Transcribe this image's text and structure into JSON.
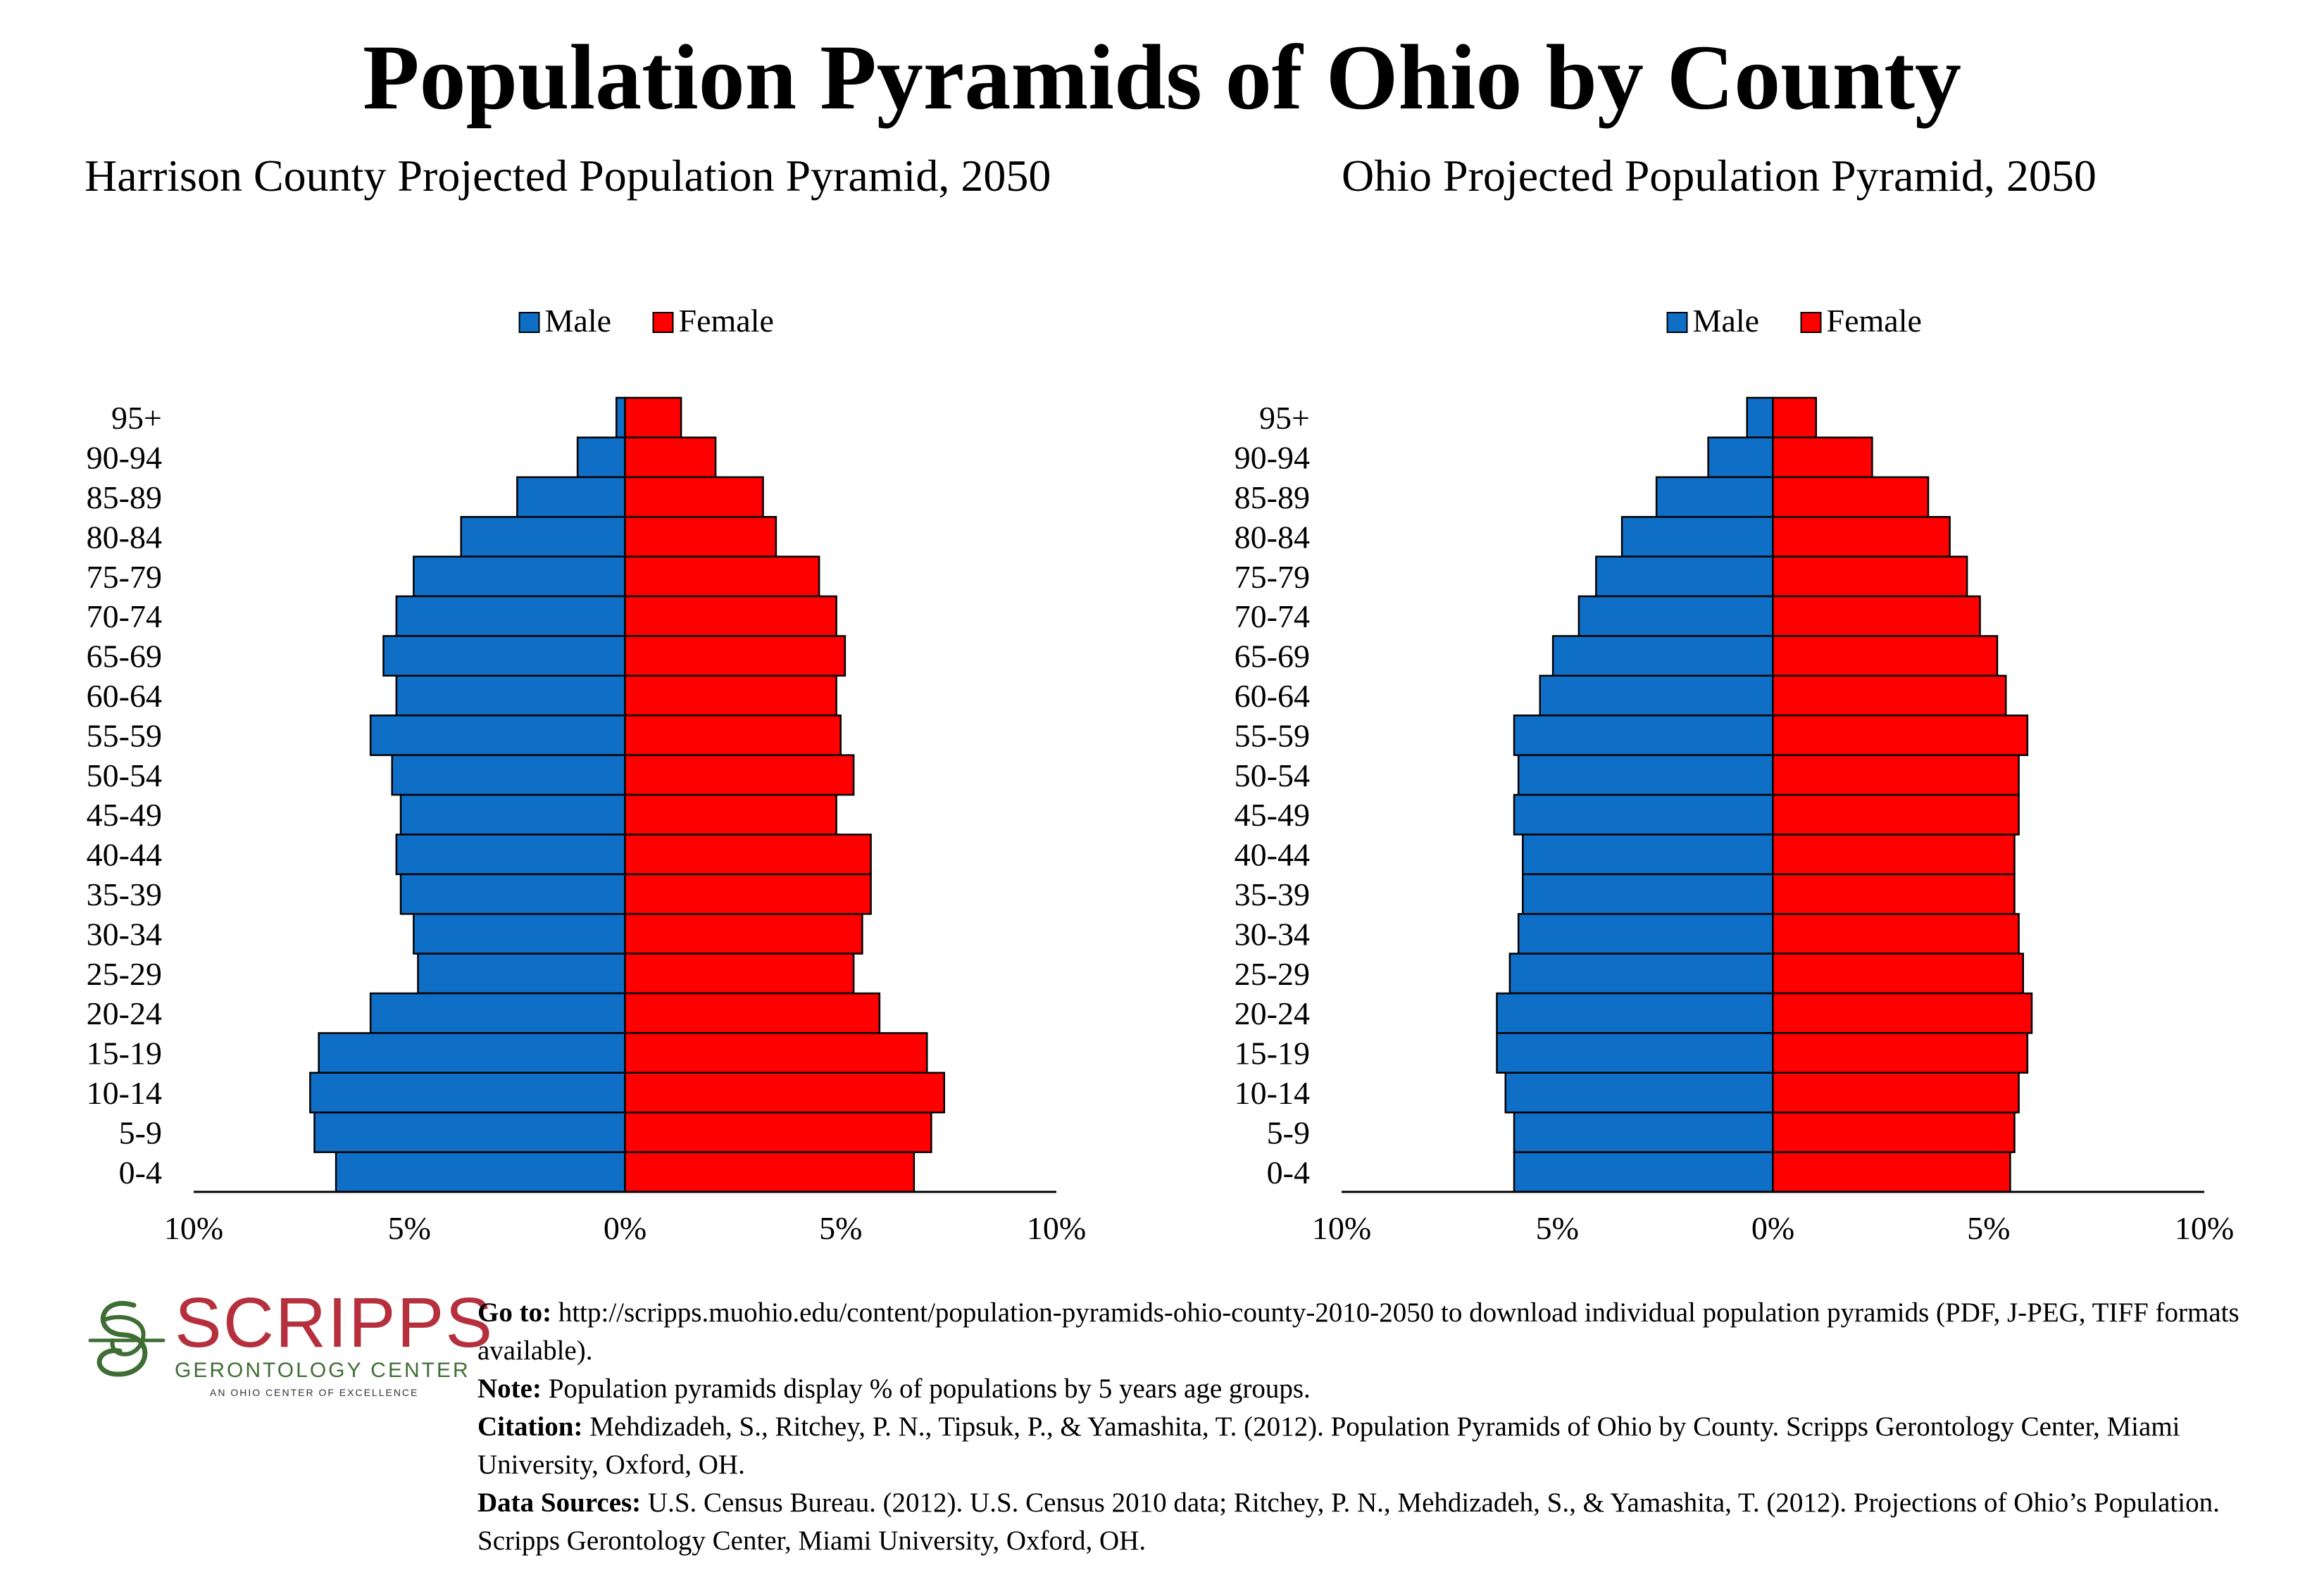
{
  "title": "Population Pyramids of Ohio by County",
  "chart_data": [
    {
      "type": "bar",
      "title": "Harrison County Projected Population Pyramid, 2050",
      "orientation": "horizontal-pyramid",
      "categories": [
        "95+",
        "90-94",
        "85-89",
        "80-84",
        "75-79",
        "70-74",
        "65-69",
        "60-64",
        "55-59",
        "50-54",
        "45-49",
        "40-44",
        "35-39",
        "30-34",
        "25-29",
        "20-24",
        "15-19",
        "10-14",
        "5-9",
        "0-4"
      ],
      "series": [
        {
          "name": "Male",
          "color": "#0f6fc6",
          "values": [
            0.2,
            1.1,
            2.5,
            3.8,
            4.9,
            5.3,
            5.6,
            5.3,
            5.9,
            5.4,
            5.2,
            5.3,
            5.2,
            4.9,
            4.8,
            5.9,
            7.1,
            7.3,
            7.2,
            6.7
          ]
        },
        {
          "name": "Female",
          "color": "#ff0000",
          "values": [
            1.3,
            2.1,
            3.2,
            3.5,
            4.5,
            4.9,
            5.1,
            4.9,
            5.0,
            5.3,
            4.9,
            5.7,
            5.7,
            5.5,
            5.3,
            5.9,
            7.0,
            7.4,
            7.1,
            6.7
          ]
        }
      ],
      "xlim": [
        -10,
        10
      ],
      "x_ticks": [
        "10%",
        "5%",
        "0%",
        "5%",
        "10%"
      ],
      "legend": "top-center"
    },
    {
      "type": "bar",
      "title": "Ohio Projected Population Pyramid, 2050",
      "orientation": "horizontal-pyramid",
      "categories": [
        "95+",
        "90-94",
        "85-89",
        "80-84",
        "75-79",
        "70-74",
        "65-69",
        "60-64",
        "55-59",
        "50-54",
        "45-49",
        "40-44",
        "35-39",
        "30-34",
        "25-29",
        "20-24",
        "15-19",
        "10-14",
        "5-9",
        "0-4"
      ],
      "series": [
        {
          "name": "Male",
          "color": "#0f6fc6",
          "values": [
            0.6,
            1.5,
            2.7,
            3.5,
            4.1,
            4.5,
            5.1,
            5.4,
            6.0,
            5.9,
            6.0,
            5.8,
            5.8,
            5.9,
            6.1,
            6.4,
            6.4,
            6.2,
            6.0,
            6.0
          ]
        },
        {
          "name": "Female",
          "color": "#ff0000",
          "values": [
            1.0,
            2.3,
            3.6,
            4.1,
            4.5,
            4.8,
            5.2,
            5.4,
            5.9,
            5.7,
            5.7,
            5.6,
            5.6,
            5.7,
            5.8,
            6.0,
            5.9,
            5.7,
            5.6,
            5.5
          ]
        }
      ],
      "xlim": [
        -10,
        10
      ],
      "x_ticks": [
        "10%",
        "5%",
        "0%",
        "5%",
        "10%"
      ],
      "legend": "top-center"
    }
  ],
  "logo": {
    "word": "SCRIPPS",
    "subtitle": "GERONTOLOGY CENTER",
    "tagline": "AN OHIO CENTER OF EXCELLENCE"
  },
  "notes": {
    "goto_label": "Go to:",
    "goto_text": "http://scripps.muohio.edu/content/population-pyramids-ohio-county-2010-2050 to download individual population pyramids (PDF, J-PEG, TIFF formats available).",
    "note_label": "Note:",
    "note_text": "Population pyramids display % of populations by 5 years age groups.",
    "citation_label": "Citation:",
    "citation_text": "Mehdizadeh, S., Ritchey, P. N., Tipsuk, P., & Yamashita, T. (2012). Population Pyramids of Ohio by County. Scripps Gerontology Center, Miami University, Oxford, OH.",
    "sources_label": "Data Sources:",
    "sources_text": "U.S. Census Bureau. (2012). U.S. Census 2010 data; Ritchey, P. N., Mehdizadeh, S., & Yamashita, T. (2012). Projections of Ohio’s Population. Scripps Gerontology Center, Miami University, Oxford, OH."
  },
  "colors": {
    "male": "#0f6fc6",
    "female": "#ff0000",
    "logo_red": "#b5303c",
    "logo_green": "#3f6e35"
  }
}
